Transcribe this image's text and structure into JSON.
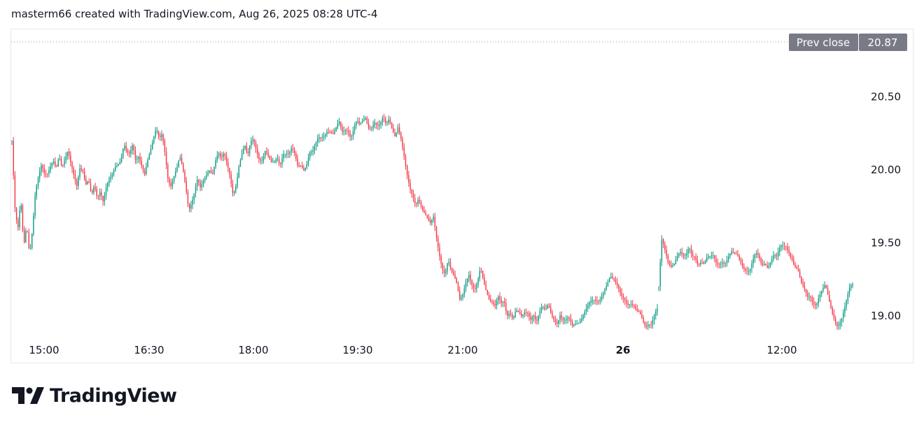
{
  "header": {
    "text": "masterm66 created with TradingView.com, Aug 26, 2025 08:28 UTC-4"
  },
  "brand": {
    "name": "TradingView",
    "logo_icon": "tradingview-logo-icon"
  },
  "colors": {
    "up": "#089981",
    "down": "#f23645",
    "badge": "#787b86",
    "text": "#131722"
  },
  "chart_data": {
    "type": "candlestick",
    "x_ticks": [
      {
        "label": "15:00",
        "bold": false
      },
      {
        "label": "16:30",
        "bold": false
      },
      {
        "label": "18:00",
        "bold": false
      },
      {
        "label": "19:30",
        "bold": false
      },
      {
        "label": "21:00",
        "bold": false
      },
      {
        "label": "26",
        "bold": true
      },
      {
        "label": "12:00",
        "bold": false
      }
    ],
    "y_ticks": [
      "20.50",
      "20.00",
      "19.50",
      "19.00"
    ],
    "ylim": [
      18.8,
      21.0
    ],
    "prev_close": {
      "label": "Prev close",
      "value": "20.87"
    },
    "grid": false,
    "series": [
      {
        "segment": "day1",
        "close": [
          20.2,
          19.72,
          19.55,
          19.78,
          19.48,
          19.65,
          19.45,
          19.62,
          19.85,
          19.92,
          20.0,
          19.96,
          19.98,
          20.05,
          20.1,
          20.02,
          20.08,
          19.98,
          20.04,
          20.12,
          20.06,
          20.0,
          19.92,
          20.02,
          19.98,
          19.86,
          19.9,
          19.82,
          19.92,
          19.84,
          19.88,
          19.78,
          19.86,
          19.9,
          19.94,
          20.02,
          20.06,
          20.1,
          20.2,
          20.12,
          20.08,
          20.14,
          20.04,
          20.1,
          20.06,
          20.0,
          20.08,
          20.12,
          20.18,
          20.25,
          20.2,
          20.26,
          20.14,
          19.96,
          19.9,
          19.94,
          19.98,
          20.06,
          20.0,
          19.9,
          19.76,
          19.8,
          19.86,
          19.92,
          19.84,
          19.9,
          19.96,
          20.02,
          20.0,
          20.08,
          20.12,
          20.05,
          20.08,
          20.02,
          19.96,
          19.86,
          19.92,
          20.04,
          20.1,
          20.14,
          20.06,
          20.18,
          20.22,
          20.16,
          20.1,
          20.08,
          20.12,
          20.06,
          20.02,
          20.04,
          20.1,
          20.06,
          20.14,
          20.12,
          20.09,
          20.12,
          20.08,
          20.02,
          20.05,
          20.03,
          20.06,
          20.12,
          20.1,
          20.14,
          20.2,
          20.22,
          20.26,
          20.3,
          20.28,
          20.24,
          20.26,
          20.3,
          20.24,
          20.28,
          20.3,
          20.25,
          20.3,
          20.33,
          20.28,
          20.3,
          20.34,
          20.3,
          20.32,
          20.36,
          20.31,
          20.3,
          20.33,
          20.28,
          20.34,
          20.3,
          20.26,
          20.32,
          20.22,
          20.08,
          19.94,
          19.85,
          19.82,
          19.78,
          19.84,
          19.76,
          19.7,
          19.64,
          19.6,
          19.66,
          19.55,
          19.45,
          19.36,
          19.3,
          19.38,
          19.28,
          19.24,
          19.2,
          19.12,
          19.18,
          19.26,
          19.3,
          19.2,
          19.14,
          19.2,
          19.32,
          19.26,
          19.2,
          19.14,
          19.1,
          19.05,
          19.1,
          19.06,
          19.1,
          19.02,
          19.06,
          19.0,
          19.04,
          19.0,
          18.96,
          19.0,
          19.02,
          19.0,
          19.04,
          18.98,
          19.02,
          19.04,
          19.0,
          19.06,
          19.02,
          19.0,
          18.98,
          19.02,
          18.96,
          18.94,
          18.96,
          18.92,
          18.96,
          18.98,
          19.0,
          19.02,
          19.04,
          19.06,
          19.08,
          19.1,
          19.12,
          19.16,
          19.2,
          19.22,
          19.25,
          19.22,
          19.2,
          19.18,
          19.16,
          19.14,
          19.1,
          19.08,
          19.04,
          19.0,
          19.0,
          18.98,
          18.95,
          18.98,
          18.96,
          19.0,
          19.02
        ]
      },
      {
        "segment": "day2",
        "close": [
          19.2,
          19.5,
          19.42,
          19.35,
          19.34,
          19.38,
          19.44,
          19.46,
          19.4,
          19.38,
          19.44,
          19.4,
          19.42,
          19.38,
          19.4,
          19.36,
          19.38,
          19.37,
          19.39,
          19.36,
          19.38,
          19.4,
          19.38,
          19.4,
          19.41,
          19.39,
          19.4,
          19.38,
          19.36,
          19.34,
          19.32,
          19.36,
          19.4,
          19.38,
          19.34,
          19.38,
          19.36,
          19.4,
          19.42,
          19.38,
          19.44,
          19.46,
          19.48,
          19.46,
          19.42,
          19.35,
          19.3,
          19.2,
          19.16,
          19.12,
          19.15,
          19.12,
          19.1,
          19.14,
          19.16,
          19.18,
          19.1,
          19.04,
          19.0,
          18.96,
          18.98,
          19.02,
          19.08,
          19.16,
          19.2
        ]
      }
    ]
  }
}
